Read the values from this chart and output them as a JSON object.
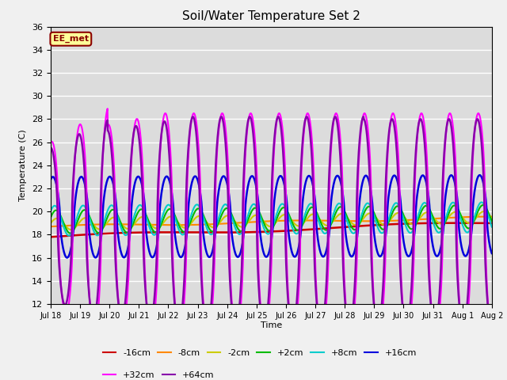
{
  "title": "Soil/Water Temperature Set 2",
  "xlabel": "Time",
  "ylabel": "Temperature (C)",
  "ylim": [
    12,
    36
  ],
  "yticks": [
    12,
    14,
    16,
    18,
    20,
    22,
    24,
    26,
    28,
    30,
    32,
    34,
    36
  ],
  "plot_bg_color": "#dcdcdc",
  "fig_bg_color": "#f0f0f0",
  "grid_color": "#ffffff",
  "annotation_text": "EE_met",
  "annotation_bg": "#ffff99",
  "annotation_border": "#8b0000",
  "series_order": [
    "-16cm",
    "-8cm",
    "-2cm",
    "+2cm",
    "+8cm",
    "+16cm",
    "+32cm",
    "+64cm"
  ],
  "series": {
    "-16cm": {
      "color": "#cc0000",
      "linewidth": 1.8
    },
    "-8cm": {
      "color": "#ff8800",
      "linewidth": 1.5
    },
    "-2cm": {
      "color": "#cccc00",
      "linewidth": 1.5
    },
    "+2cm": {
      "color": "#00bb00",
      "linewidth": 1.5
    },
    "+8cm": {
      "color": "#00cccc",
      "linewidth": 1.5
    },
    "+16cm": {
      "color": "#0000dd",
      "linewidth": 1.8
    },
    "+32cm": {
      "color": "#ff00ff",
      "linewidth": 1.5
    },
    "+64cm": {
      "color": "#8800aa",
      "linewidth": 1.8
    }
  },
  "xtick_labels": [
    "Jul 18",
    "Jul 19",
    "Jul 20",
    "Jul 21",
    "Jul 22",
    "Jul 23",
    "Jul 24",
    "Jul 25",
    "Jul 26",
    "Jul 27",
    "Jul 28",
    "Jul 29",
    "Jul 30",
    "Jul 31",
    "Aug 1",
    "Aug 2"
  ],
  "num_points": 1500,
  "start_day": 0,
  "end_day": 15.5,
  "legend_ncol_row1": 6,
  "legend_ncol_row2": 2
}
